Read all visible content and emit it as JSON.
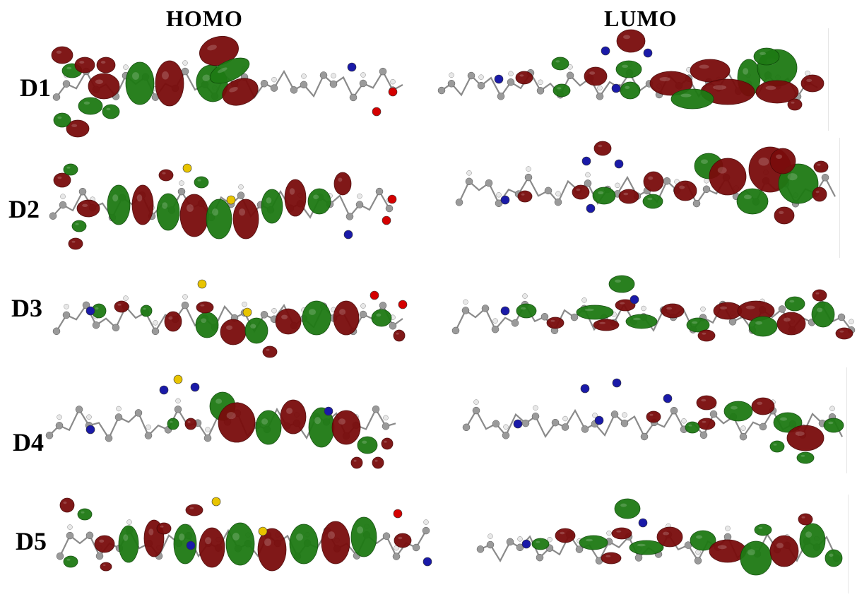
{
  "columns": {
    "left": "HOMO",
    "right": "LUMO"
  },
  "rows": [
    {
      "label": "D1"
    },
    {
      "label": "D2"
    },
    {
      "label": "D3"
    },
    {
      "label": "D4"
    },
    {
      "label": "D5"
    }
  ],
  "colors": {
    "lobe_positive": "#1e7a14",
    "lobe_negative": "#7a0c0c",
    "carbon": "#9a9a9a",
    "hydrogen": "#e8e8e8",
    "nitrogen": "#1a1aa8",
    "sulfur": "#e8c400",
    "oxygen": "#d40000"
  }
}
